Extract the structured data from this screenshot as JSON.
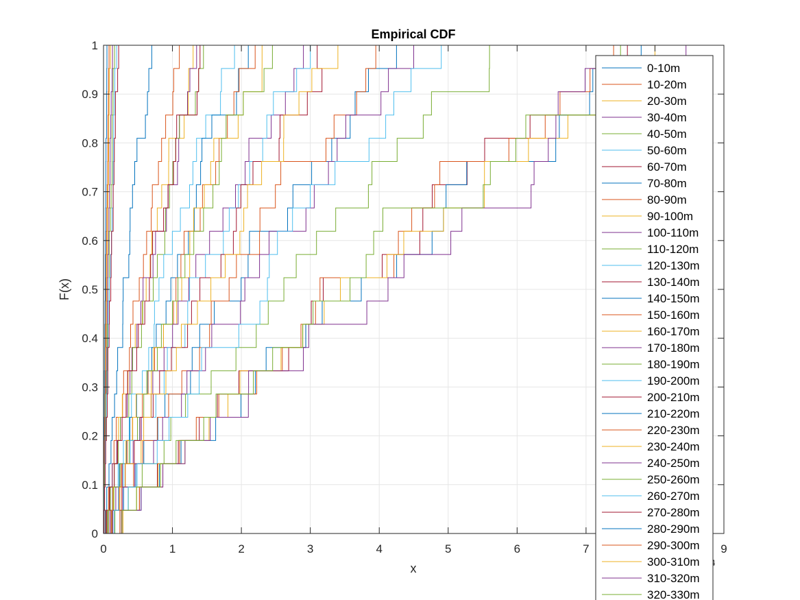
{
  "chart_data": {
    "type": "line",
    "title": "Empirical CDF",
    "xlabel": "x",
    "ylabel": "F(x)",
    "x_exponent_label": "10",
    "x_exponent": "4",
    "xlim": [
      0,
      9
    ],
    "ylim": [
      0,
      1
    ],
    "xticks": [
      "0",
      "1",
      "2",
      "3",
      "4",
      "5",
      "6",
      "7",
      "8",
      "9"
    ],
    "yticks": [
      "0",
      "0.1",
      "0.2",
      "0.3",
      "0.4",
      "0.5",
      "0.6",
      "0.7",
      "0.8",
      "0.9",
      "1"
    ],
    "grid": true,
    "legend_position": "top-right",
    "step": true,
    "series": [
      {
        "name": "0-10m",
        "color": "#0072BD",
        "x_max": 0.05
      },
      {
        "name": "10-20m",
        "color": "#D95319",
        "x_max": 0.08
      },
      {
        "name": "20-30m",
        "color": "#EDB120",
        "x_max": 0.1
      },
      {
        "name": "30-40m",
        "color": "#7E2F8E",
        "x_max": 0.13
      },
      {
        "name": "40-50m",
        "color": "#77AC30",
        "x_max": 0.16
      },
      {
        "name": "50-60m",
        "color": "#4DBEEE",
        "x_max": 0.19
      },
      {
        "name": "60-70m",
        "color": "#A2142F",
        "x_max": 0.22
      },
      {
        "name": "70-80m",
        "color": "#0072BD",
        "x_max": 0.7
      },
      {
        "name": "80-90m",
        "color": "#D95319",
        "x_max": 1.1
      },
      {
        "name": "90-100m",
        "color": "#EDB120",
        "x_max": 1.3
      },
      {
        "name": "100-110m",
        "color": "#7E2F8E",
        "x_max": 1.35
      },
      {
        "name": "110-120m",
        "color": "#77AC30",
        "x_max": 1.45
      },
      {
        "name": "120-130m",
        "color": "#4DBEEE",
        "x_max": 1.9
      },
      {
        "name": "130-140m",
        "color": "#A2142F",
        "x_max": 1.4
      },
      {
        "name": "140-150m",
        "color": "#0072BD",
        "x_max": 2.1
      },
      {
        "name": "150-160m",
        "color": "#D95319",
        "x_max": 2.2
      },
      {
        "name": "160-170m",
        "color": "#EDB120",
        "x_max": 2.3
      },
      {
        "name": "170-180m",
        "color": "#7E2F8E",
        "x_max": 2.9
      },
      {
        "name": "180-190m",
        "color": "#77AC30",
        "x_max": 2.45
      },
      {
        "name": "190-200m",
        "color": "#4DBEEE",
        "x_max": 3.0
      },
      {
        "name": "200-210m",
        "color": "#A2142F",
        "x_max": 3.1
      },
      {
        "name": "210-220m",
        "color": "#0072BD",
        "x_max": 4.25
      },
      {
        "name": "220-230m",
        "color": "#D95319",
        "x_max": 3.95
      },
      {
        "name": "230-240m",
        "color": "#EDB120",
        "x_max": 3.4
      },
      {
        "name": "240-250m",
        "color": "#7E2F8E",
        "x_max": 4.5
      },
      {
        "name": "250-260m",
        "color": "#77AC30",
        "x_max": 5.6
      },
      {
        "name": "260-270m",
        "color": "#4DBEEE",
        "x_max": 4.9
      },
      {
        "name": "270-280m",
        "color": "#A2142F",
        "x_max": 7.6
      },
      {
        "name": "280-290m",
        "color": "#0072BD",
        "x_max": 7.8
      },
      {
        "name": "290-300m",
        "color": "#D95319",
        "x_max": 7.4
      },
      {
        "name": "300-310m",
        "color": "#EDB120",
        "x_max": 8.0
      },
      {
        "name": "310-320m",
        "color": "#7E2F8E",
        "x_max": 8.45
      },
      {
        "name": "320-330m",
        "color": "#77AC30",
        "x_max": 7.5
      }
    ]
  }
}
